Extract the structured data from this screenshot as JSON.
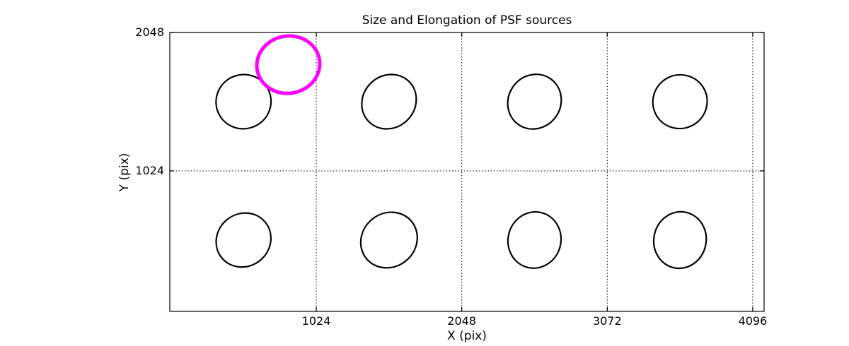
{
  "figure": {
    "background_color": "#ffffff",
    "axis_color": "#000000"
  },
  "chart_data": {
    "type": "scatter",
    "title": "Size and Elongation of PSF sources",
    "xlabel": "X (pix)",
    "ylabel": "Y (pix)",
    "xlim": [
      -7,
      4176
    ],
    "ylim": [
      -16,
      2048
    ],
    "xticks": [
      1024,
      2048,
      3072,
      4096
    ],
    "yticks": [
      1024,
      2048
    ],
    "grid": {
      "visible": true,
      "style": "dotted",
      "color": "#000000"
    },
    "legend": "none",
    "marker": "ellipse-outline",
    "series": [
      {
        "name": "psf-sources",
        "color": "#000000",
        "line_width": 2.2,
        "points": [
          {
            "x": 512,
            "y": 1536,
            "a": 194,
            "b": 200,
            "rot": -25
          },
          {
            "x": 1536,
            "y": 1536,
            "a": 200,
            "b": 192,
            "rot": -45
          },
          {
            "x": 2560,
            "y": 1536,
            "a": 197,
            "b": 193,
            "rot": -55
          },
          {
            "x": 3584,
            "y": 1536,
            "a": 192,
            "b": 198,
            "rot": -30
          },
          {
            "x": 512,
            "y": 512,
            "a": 198,
            "b": 194,
            "rot": -40
          },
          {
            "x": 1536,
            "y": 512,
            "a": 206,
            "b": 198,
            "rot": -40
          },
          {
            "x": 2560,
            "y": 512,
            "a": 186,
            "b": 209,
            "rot": 15
          },
          {
            "x": 3584,
            "y": 512,
            "a": 184,
            "b": 210,
            "rot": 12
          }
        ]
      },
      {
        "name": "highlighted-psf-source",
        "color": "#ff00ff",
        "line_width": 5,
        "points": [
          {
            "x": 827,
            "y": 1810,
            "a": 222,
            "b": 212,
            "rot": -10
          }
        ]
      }
    ]
  }
}
